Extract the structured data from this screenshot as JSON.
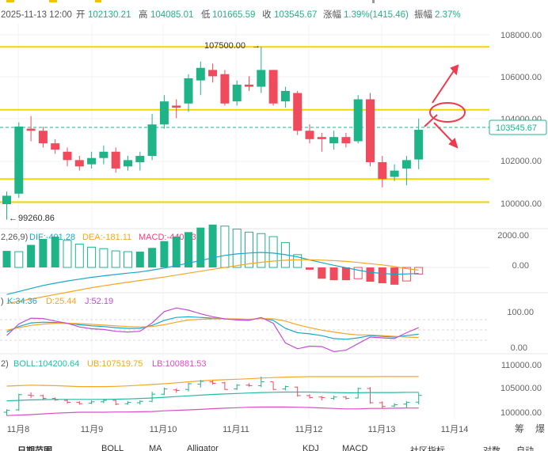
{
  "header": {
    "datetime": "2025-11-13 12:00",
    "open_label": "开",
    "open_value": "102130.21",
    "high_label": "高",
    "high_value": "104085.01",
    "low_label": "低",
    "low_value": "101665.59",
    "close_label": "收",
    "close_value": "103545.67",
    "change_label": "涨幅",
    "change_value": "1.39%(1415.46)",
    "amplitude_label": "振幅",
    "amplitude_value": "2.37%"
  },
  "price_labels": {
    "current": "103545.67",
    "high_marker": "107500.00",
    "low_marker": "99260.86"
  },
  "macd_legend": {
    "params": "2,26,9)",
    "dif": "DIF:-401.28",
    "dea": "DEA:-181.11",
    "macd": "MACD:-440.33"
  },
  "kdj_legend": {
    "params": ")",
    "k": "K:34.36",
    "d": "D:25.44",
    "j": "J:52.19"
  },
  "boll_legend": {
    "params": "2)",
    "boll": "BOLL:104200.64",
    "ub": "UB:107519.75",
    "lb": "LB:100881.53"
  },
  "bottom_tabs": {
    "period": "日期范围",
    "boll": "BOLL",
    "ma": "MA",
    "alligator": "Alligator",
    "kdj": "KDJ",
    "macd": "MACD",
    "community": "社区指标",
    "compare": "对数",
    "auto": "自动"
  },
  "side_labels": {
    "chip": "筹",
    "burst": "爆"
  },
  "colors": {
    "up": "#1fb487",
    "down": "#ef4b5c",
    "yellow": "#f5d500",
    "dif": "#1aa8c8",
    "dea": "#f5a623",
    "macd_label": "#e8447a",
    "k": "#1aa8c8",
    "d": "#f5a623",
    "j": "#c34cd6",
    "boll": "#27b9a9",
    "ub": "#f5a623",
    "lb": "#d94fc4",
    "arrow": "#f0394d"
  },
  "chart_data": {
    "type": "candlestick",
    "x_tick_labels": [
      "11月8",
      "11月9",
      "11月10",
      "11月11",
      "11月12",
      "11月13",
      "11月14"
    ],
    "price_axis_ticks": [
      "108000.00",
      "106000.00",
      "104000.00",
      "102000.00",
      "100000.00"
    ],
    "macd_axis_ticks": [
      "2000.00",
      "0.00"
    ],
    "kdj_axis_ticks": [
      "100.00",
      "0.00"
    ],
    "boll_axis_ticks": [
      "110000.00",
      "105000.00",
      "100000.00"
    ],
    "horizontal_levels": [
      107500,
      104500,
      101200,
      100100
    ],
    "candles": [
      {
        "o": 100000,
        "c": 100400,
        "h": 100600,
        "l": 99260
      },
      {
        "o": 100500,
        "c": 103700,
        "h": 103900,
        "l": 100300
      },
      {
        "o": 103600,
        "c": 103500,
        "h": 104200,
        "l": 103000
      },
      {
        "o": 103500,
        "c": 102900,
        "h": 103700,
        "l": 102700
      },
      {
        "o": 102900,
        "c": 102600,
        "h": 103100,
        "l": 102400
      },
      {
        "o": 102500,
        "c": 102100,
        "h": 102700,
        "l": 101800
      },
      {
        "o": 102100,
        "c": 101800,
        "h": 102300,
        "l": 101600
      },
      {
        "o": 101900,
        "c": 102200,
        "h": 102500,
        "l": 101700
      },
      {
        "o": 102200,
        "c": 102500,
        "h": 102800,
        "l": 101900
      },
      {
        "o": 102500,
        "c": 101700,
        "h": 102700,
        "l": 101500
      },
      {
        "o": 101800,
        "c": 102100,
        "h": 102300,
        "l": 101600
      },
      {
        "o": 102000,
        "c": 102300,
        "h": 102500,
        "l": 101600
      },
      {
        "o": 102300,
        "c": 103800,
        "h": 104300,
        "l": 102100
      },
      {
        "o": 103800,
        "c": 104900,
        "h": 105200,
        "l": 103600
      },
      {
        "o": 104700,
        "c": 104600,
        "h": 105000,
        "l": 104100
      },
      {
        "o": 104800,
        "c": 106000,
        "h": 106200,
        "l": 104400
      },
      {
        "o": 105900,
        "c": 106500,
        "h": 106800,
        "l": 105200
      },
      {
        "o": 106400,
        "c": 106100,
        "h": 106700,
        "l": 105800
      },
      {
        "o": 106200,
        "c": 104800,
        "h": 106400,
        "l": 104700
      },
      {
        "o": 104900,
        "c": 105700,
        "h": 105900,
        "l": 104700
      },
      {
        "o": 105700,
        "c": 105600,
        "h": 106100,
        "l": 105400
      },
      {
        "o": 105600,
        "c": 106400,
        "h": 107500,
        "l": 105300
      },
      {
        "o": 106400,
        "c": 104800,
        "h": 106400,
        "l": 104700
      },
      {
        "o": 104900,
        "c": 105400,
        "h": 105600,
        "l": 104600
      },
      {
        "o": 105300,
        "c": 103500,
        "h": 105400,
        "l": 103300
      },
      {
        "o": 103500,
        "c": 103100,
        "h": 103800,
        "l": 102900
      },
      {
        "o": 103200,
        "c": 103100,
        "h": 103400,
        "l": 102500
      },
      {
        "o": 102900,
        "c": 103200,
        "h": 103500,
        "l": 102600
      },
      {
        "o": 103200,
        "c": 102900,
        "h": 103400,
        "l": 102700
      },
      {
        "o": 103000,
        "c": 105000,
        "h": 105200,
        "l": 102900
      },
      {
        "o": 105000,
        "c": 102000,
        "h": 105300,
        "l": 101800
      },
      {
        "o": 102000,
        "c": 101200,
        "h": 102300,
        "l": 100800
      },
      {
        "o": 101300,
        "c": 101600,
        "h": 101900,
        "l": 101100
      },
      {
        "o": 101700,
        "c": 102100,
        "h": 102300,
        "l": 100900
      },
      {
        "o": 102130,
        "c": 103546,
        "h": 104085,
        "l": 101666
      }
    ],
    "macd_hist": [
      1100,
      1050,
      1500,
      1900,
      2050,
      1800,
      1550,
      1350,
      1250,
      1100,
      1050,
      1050,
      1300,
      1750,
      2050,
      2350,
      2650,
      2850,
      2750,
      2550,
      2350,
      2250,
      2050,
      1650,
      850,
      -150,
      -750,
      -850,
      -850,
      -750,
      -950,
      -1050,
      -1150,
      -900,
      -440
    ],
    "dif": [
      -1800,
      -1600,
      -1400,
      -1200,
      -1050,
      -900,
      -780,
      -660,
      -560,
      -470,
      -380,
      -300,
      -180,
      -40,
      120,
      290,
      460,
      640,
      800,
      900,
      960,
      1000,
      950,
      850,
      700,
      500,
      320,
      140,
      -20,
      -180,
      -320,
      -400,
      -450,
      -430,
      -401
    ],
    "dea": [
      -2400,
      -2250,
      -2100,
      -1950,
      -1800,
      -1650,
      -1500,
      -1350,
      -1220,
      -1100,
      -980,
      -870,
      -760,
      -640,
      -510,
      -380,
      -250,
      -120,
      0,
      120,
      240,
      340,
      420,
      480,
      510,
      510,
      490,
      450,
      400,
      330,
      250,
      170,
      60,
      -80,
      -181
    ],
    "kdj_k": [
      40,
      55,
      65,
      67,
      66,
      64,
      60,
      57,
      55,
      52,
      50,
      50,
      58,
      72,
      80,
      82,
      80,
      78,
      76,
      75,
      74,
      78,
      72,
      50,
      38,
      35,
      30,
      22,
      20,
      24,
      30,
      28,
      26,
      30,
      34
    ],
    "kdj_d": [
      45,
      52,
      58,
      62,
      64,
      64,
      63,
      61,
      59,
      57,
      55,
      54,
      55,
      60,
      67,
      73,
      75,
      76,
      76,
      76,
      75,
      77,
      76,
      70,
      60,
      52,
      45,
      40,
      35,
      32,
      32,
      30,
      28,
      26,
      25
    ],
    "kdj_j": [
      30,
      62,
      78,
      77,
      70,
      64,
      54,
      49,
      47,
      42,
      40,
      42,
      65,
      96,
      106,
      100,
      90,
      82,
      76,
      73,
      72,
      80,
      64,
      10,
      -6,
      1,
      0,
      -14,
      -10,
      8,
      26,
      24,
      22,
      38,
      52
    ],
    "boll_mid": [
      102400,
      102500,
      102600,
      102650,
      102700,
      102700,
      102700,
      102700,
      102700,
      102750,
      102800,
      102900,
      103000,
      103150,
      103300,
      103450,
      103600,
      103750,
      103850,
      103950,
      104050,
      104150,
      104200,
      104250,
      104250,
      104250,
      104200,
      104150,
      104100,
      104100,
      104150,
      104150,
      104150,
      104200,
      104200
    ],
    "boll_ub": [
      105500,
      105600,
      105700,
      105650,
      105600,
      105500,
      105400,
      105400,
      105400,
      105450,
      105550,
      105700,
      105850,
      106000,
      106200,
      106400,
      106600,
      106750,
      106850,
      106950,
      107050,
      107200,
      107300,
      107400,
      107450,
      107500,
      107500,
      107500,
      107500,
      107500,
      107500,
      107520,
      107520,
      107520,
      107520
    ],
    "boll_lb": [
      99300,
      99400,
      99500,
      99650,
      99800,
      99900,
      100000,
      100000,
      100000,
      100050,
      100050,
      100100,
      100150,
      100300,
      100400,
      100500,
      100600,
      100750,
      100850,
      100950,
      101050,
      101100,
      101100,
      101100,
      101050,
      101000,
      100900,
      100800,
      100700,
      100700,
      100800,
      100800,
      100850,
      100880,
      100880
    ]
  }
}
